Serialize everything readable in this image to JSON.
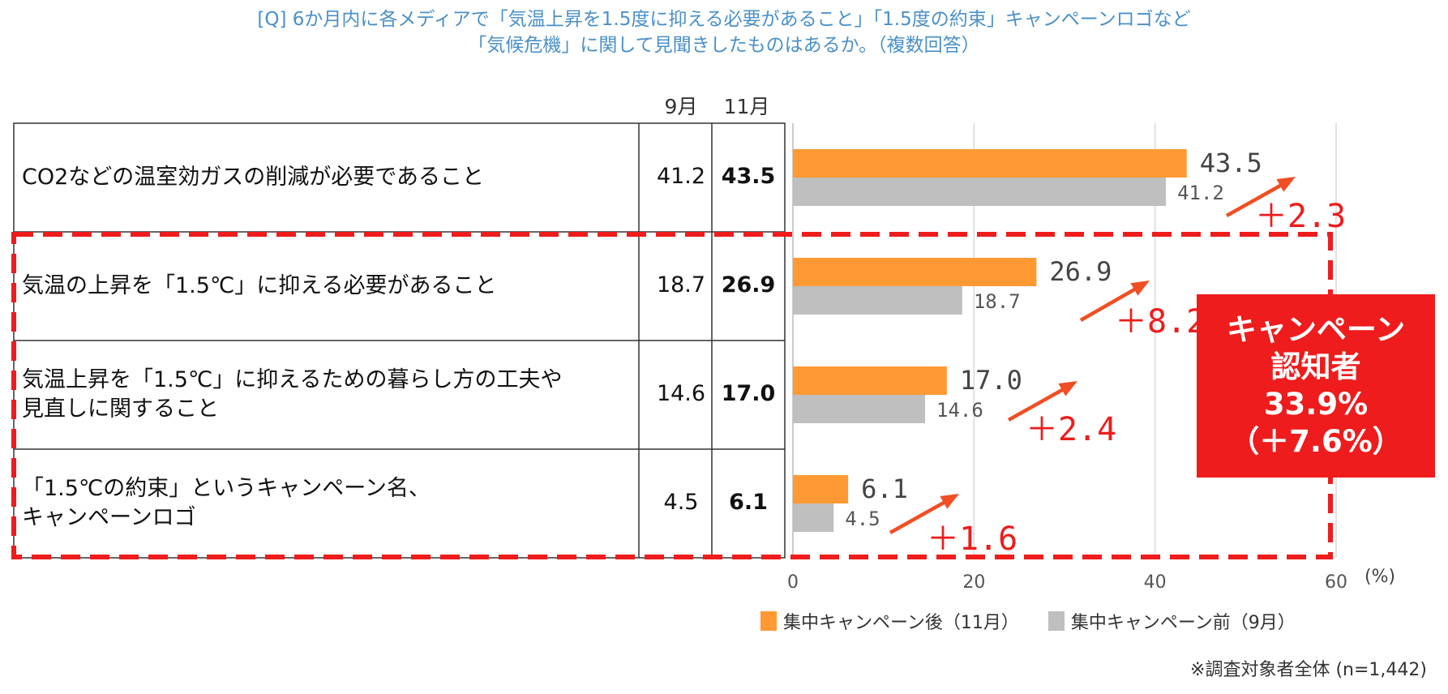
{
  "title": {
    "line1": "[Q] 6か月内に各メディアで「気温上昇を1.5度に抑える必要があること」「1.5度の約束」キャンペーンロゴなど",
    "line2": "「気候危機」に関して見聞きしたものはあるか。（複数回答）"
  },
  "table": {
    "col_sep": "9月",
    "col_nov": "11月",
    "rows": [
      {
        "label_lines": [
          "CO2などの温室効ガスの削減が必要であること"
        ],
        "sep": "41.2",
        "nov": "43.5"
      },
      {
        "label_lines": [
          "気温の上昇を「1.5℃」に抑える必要があること"
        ],
        "sep": "18.7",
        "nov": "26.9"
      },
      {
        "label_lines": [
          "気温上昇を「1.5℃」に抑えるための暮らし方の工夫や",
          "見直しに関すること"
        ],
        "sep": "14.6",
        "nov": "17.0"
      },
      {
        "label_lines": [
          "「1.5℃の約束」というキャンペーン名、",
          "キャンペーンロゴ"
        ],
        "sep": "4.5",
        "nov": "6.1"
      }
    ]
  },
  "chart_data": {
    "type": "bar",
    "orientation": "horizontal",
    "categories": [
      "CO2などの温室効ガスの削減が必要であること",
      "気温の上昇を「1.5℃」に抑える必要があること",
      "気温上昇を「1.5℃」に抑えるための暮らし方の工夫や見直しに関すること",
      "「1.5℃の約束」というキャンペーン名、キャンペーンロゴ"
    ],
    "series": [
      {
        "name": "集中キャンペーン後（11月）",
        "values": [
          43.5,
          26.9,
          17.0,
          6.1
        ],
        "labels": [
          "43.5",
          "26.9",
          "17.0",
          "6.1"
        ],
        "color": "#ff9933"
      },
      {
        "name": "集中キャンペーン前（9月）",
        "values": [
          41.2,
          18.7,
          14.6,
          4.5
        ],
        "labels": [
          "41.2",
          "18.7",
          "14.6",
          "4.5"
        ],
        "color": "#bfbfbf"
      }
    ],
    "differences": [
      "＋2.3",
      "＋8.2",
      "＋2.4",
      "＋1.6"
    ],
    "xlim": [
      0,
      60
    ],
    "xticks": [
      0,
      20,
      40,
      60
    ],
    "xtick_labels": [
      "0",
      "20",
      "40",
      "60"
    ],
    "unit": "(%)",
    "grid": true,
    "legend": "bottom",
    "highlight_color": "#ee1c1c",
    "arrow_color": "#f04e23"
  },
  "campaign_box": {
    "line1": "キャンペーン",
    "line2": "認知者",
    "line3": "33.9%",
    "line4": "（＋7.6%）"
  },
  "legend": {
    "after": "集中キャンペーン後（11月）",
    "before": "集中キャンペーン前（9月）"
  },
  "footnote": "※調査対象者全体 (n=1,442)"
}
